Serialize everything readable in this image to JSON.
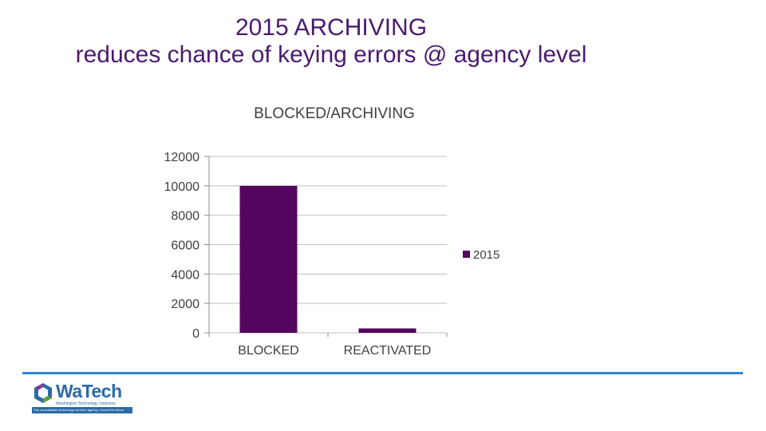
{
  "slide": {
    "title_line1": "2015 ARCHIVING",
    "title_line2": "reduces chance of keying errors @ agency level"
  },
  "chart_data": {
    "type": "bar",
    "title": "BLOCKED/ARCHIVING",
    "categories": [
      "BLOCKED",
      "REACTIVATED"
    ],
    "series": [
      {
        "name": "2015",
        "values": [
          10000,
          300
        ],
        "color": "#54065e"
      }
    ],
    "ylim": [
      0,
      12000
    ],
    "yticks": [
      0,
      2000,
      4000,
      6000,
      8000,
      10000,
      12000
    ],
    "xlabel": "",
    "ylabel": "",
    "grid": true,
    "legend_position": "right"
  },
  "logo": {
    "name": "WaTech",
    "subtitle": "Washington Technology Solutions",
    "tagline": "The consolidated technology services agency • Invent the future",
    "color": "#2b6aa8"
  },
  "accent": {
    "rule_color": "#2e86d6"
  }
}
